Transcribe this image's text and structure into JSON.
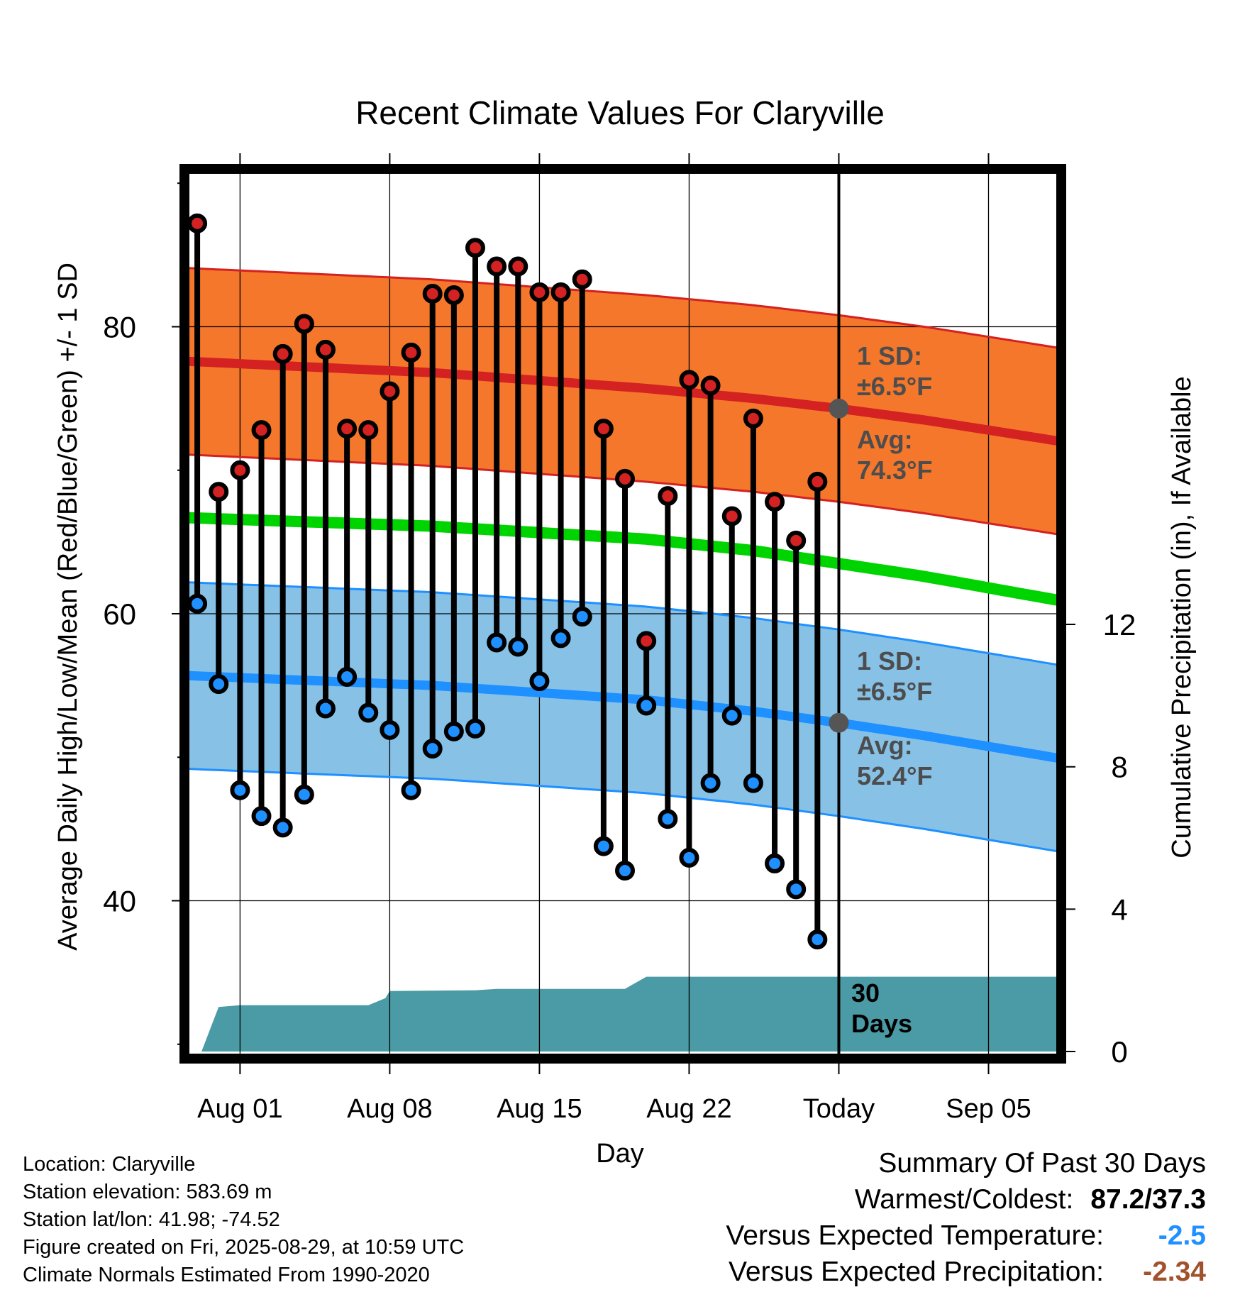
{
  "chart_data": {
    "type": "line",
    "title": "Recent Climate Values For Claryville",
    "xlabel": "Day",
    "ylabel": "Average Daily High/Low/Mean (Red/Blue/Green) +/- 1 SD",
    "y2label": "Cumulative Precipitation (in), If Available",
    "x_tick_labels": [
      "Aug 01",
      "Aug 08",
      "Aug 15",
      "Aug 22",
      "Today",
      "Sep 05"
    ],
    "x_tick_days": [
      1,
      8,
      15,
      22,
      29,
      36
    ],
    "xlim": [
      -1.6,
      39.4
    ],
    "ylim": [
      29,
      91
    ],
    "y_ticks": [
      40,
      60,
      80
    ],
    "y2lim": [
      -0.2,
      24.8
    ],
    "y2_ticks": [
      0,
      4,
      8,
      12
    ],
    "grid": true,
    "today_day": 29,
    "series": [
      {
        "name": "High",
        "color": "#d42121",
        "x": [
          -1,
          0,
          1,
          2,
          3,
          4,
          5,
          6,
          7,
          8,
          9,
          10,
          11,
          12,
          13,
          14,
          15,
          16,
          17,
          18,
          19,
          20,
          21,
          22,
          23,
          24,
          25,
          26,
          27,
          28
        ],
        "values": [
          87.2,
          68.5,
          70.0,
          72.8,
          78.1,
          80.2,
          78.4,
          72.9,
          72.8,
          75.5,
          78.2,
          82.3,
          82.2,
          85.5,
          84.2,
          84.2,
          82.4,
          82.4,
          83.3,
          72.9,
          69.4,
          58.1,
          68.2,
          76.3,
          75.9,
          66.8,
          73.6,
          67.8,
          65.1,
          69.2
        ]
      },
      {
        "name": "Low",
        "color": "#1e90ff",
        "x": [
          -1,
          0,
          1,
          2,
          3,
          4,
          5,
          6,
          7,
          8,
          9,
          10,
          11,
          12,
          13,
          14,
          15,
          16,
          17,
          18,
          19,
          20,
          21,
          22,
          23,
          24,
          25,
          26,
          27,
          28
        ],
        "values": [
          60.7,
          55.1,
          47.7,
          45.9,
          45.1,
          47.4,
          53.4,
          55.6,
          53.1,
          51.9,
          47.7,
          50.6,
          51.8,
          52.0,
          58.0,
          57.7,
          55.3,
          58.3,
          59.8,
          43.8,
          42.1,
          53.6,
          45.7,
          43.0,
          48.2,
          52.9,
          48.2,
          42.6,
          40.8,
          37.3
        ]
      }
    ],
    "normal_high": {
      "color": "#d42121",
      "band_color": "#f4772b",
      "x": [
        -1.6,
        10,
        20,
        25,
        29,
        33,
        39.4
      ],
      "avg": [
        77.6,
        76.8,
        75.7,
        75.0,
        74.3,
        73.5,
        72.0
      ],
      "sd": 6.5
    },
    "normal_mean": {
      "color": "#00d400",
      "x": [
        -1.6,
        10,
        20,
        25,
        29,
        33,
        39.4
      ],
      "values": [
        66.7,
        66.1,
        65.2,
        64.4,
        63.5,
        62.6,
        60.9
      ]
    },
    "normal_low": {
      "color": "#1e90ff",
      "band_color": "#87c1e6",
      "x": [
        -1.6,
        10,
        20,
        25,
        29,
        33,
        39.4
      ],
      "avg": [
        55.7,
        55.0,
        54.0,
        53.2,
        52.4,
        51.5,
        49.9
      ],
      "sd": 6.5
    },
    "precipitation": {
      "color": "#4a9ba5",
      "x": [
        -1.6,
        -0.8,
        0,
        1,
        7,
        7.8,
        8,
        12,
        13,
        19,
        20,
        39.4
      ],
      "values": [
        0,
        0,
        1.25,
        1.3,
        1.3,
        1.5,
        1.7,
        1.72,
        1.76,
        1.76,
        2.1,
        2.1
      ]
    },
    "annotations": {
      "high_sd_label": "1 SD:",
      "high_sd_value": "±6.5°F",
      "high_avg_label": "Avg:",
      "high_avg_value": "74.3°F",
      "low_sd_label": "1 SD:",
      "low_sd_value": "±6.5°F",
      "low_avg_label": "Avg:",
      "low_avg_value": "52.4°F",
      "days_number": "30",
      "days_word": "Days"
    }
  },
  "footer": {
    "location": "Location: Claryville",
    "elevation": "Station elevation: 583.69 m",
    "latlon": "Station lat/lon: 41.98; -74.52",
    "created": "Figure created on Fri, 2025-08-29, at 10:59 UTC",
    "normals": "Climate Normals Estimated From 1990-2020"
  },
  "summary": {
    "heading": "Summary Of Past 30 Days",
    "warm_cold_label": "Warmest/Coldest:",
    "warm_cold_value": "87.2/37.3",
    "temp_label": "Versus Expected Temperature:",
    "temp_value": "-2.5",
    "temp_color": "#1e90ff",
    "precip_label": "Versus Expected Precipitation:",
    "precip_value": "-2.34",
    "precip_color": "#a0522d"
  }
}
